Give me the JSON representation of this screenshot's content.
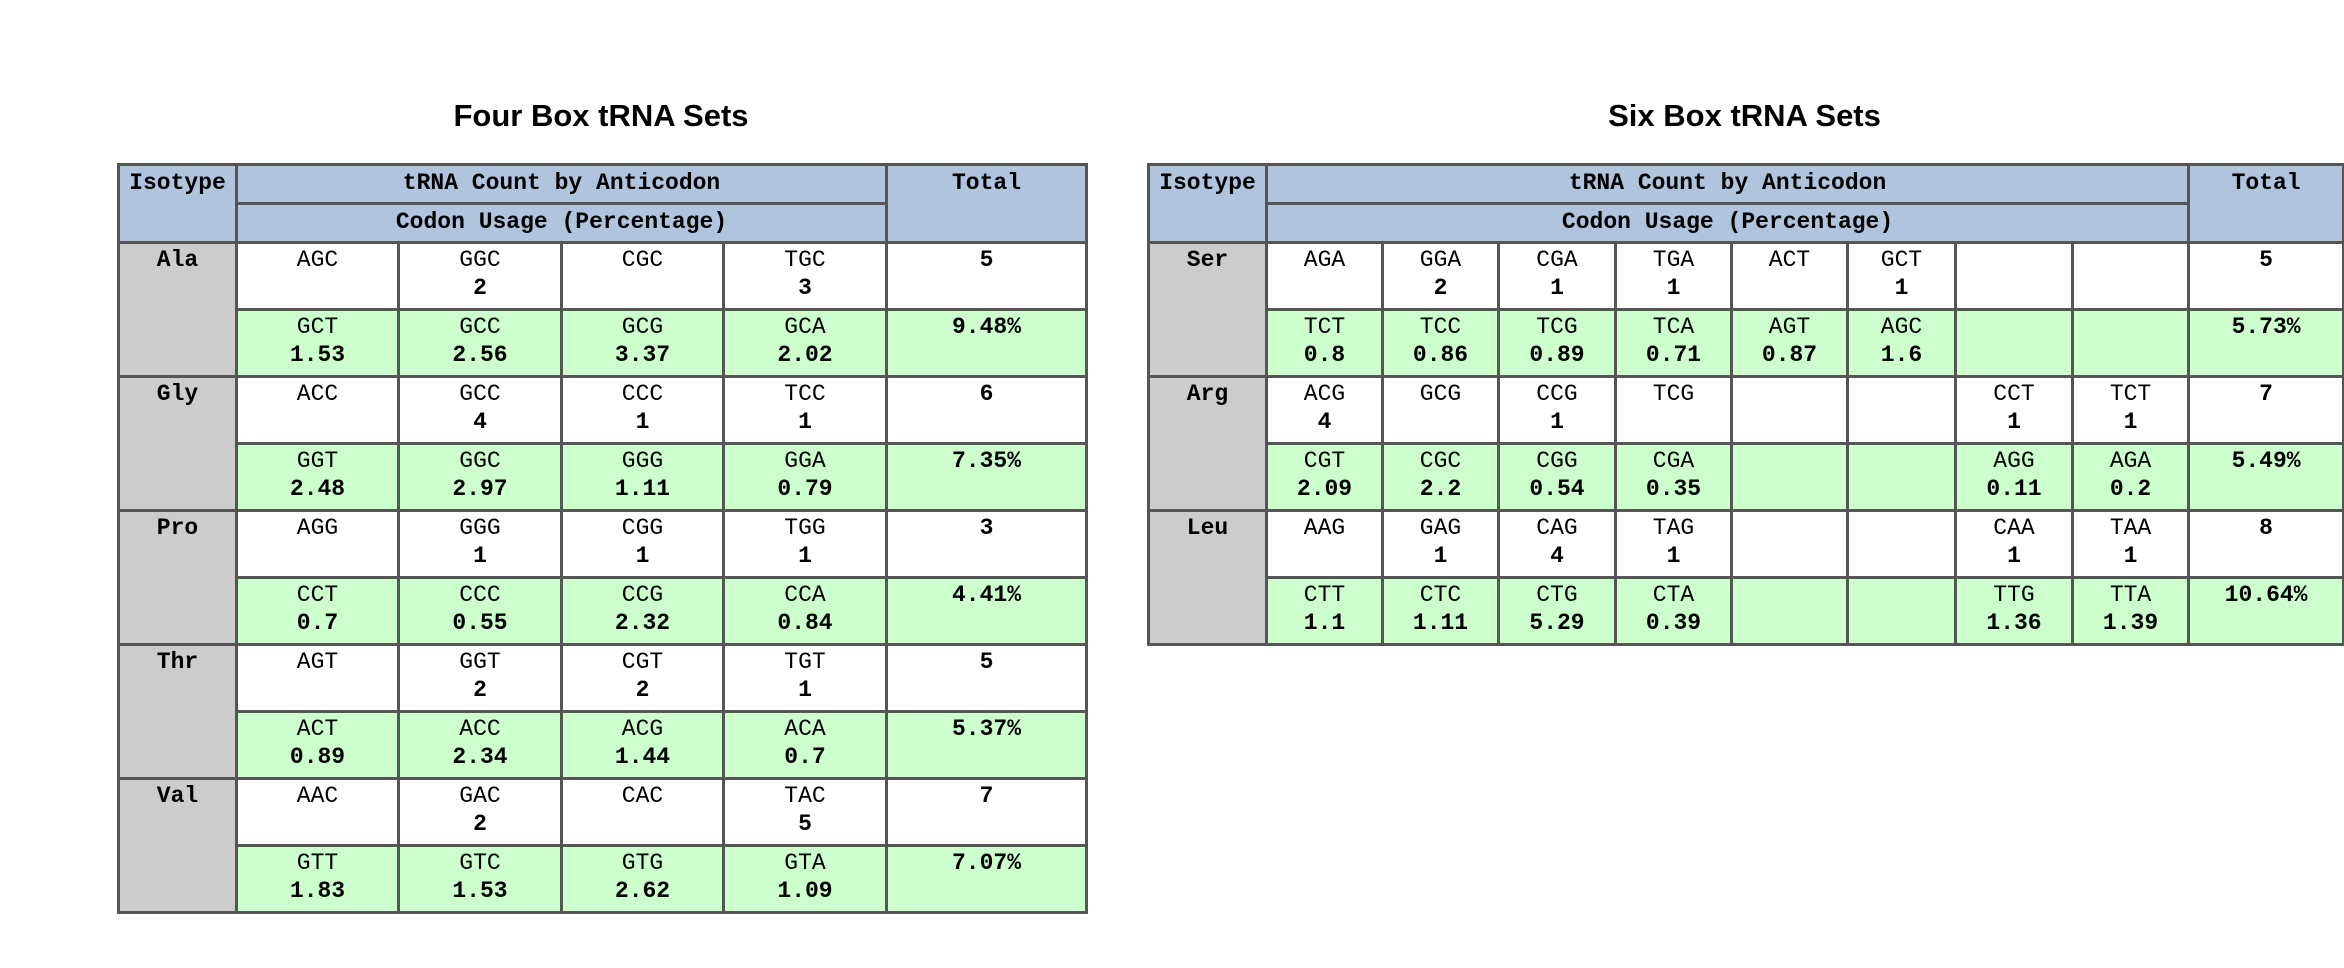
{
  "four_box": {
    "title": "Four Box tRNA Sets",
    "header": {
      "isotype": "Isotype",
      "count": "tRNA Count by Anticodon",
      "usage": "Codon Usage (Percentage)",
      "total": "Total"
    },
    "rows": [
      {
        "isotype": "Ala",
        "anticodons": [
          [
            "AGC",
            ""
          ],
          [
            "GGC",
            "2"
          ],
          [
            "CGC",
            ""
          ],
          [
            "TGC",
            "3"
          ]
        ],
        "total": "5",
        "codons": [
          [
            "GCT",
            "1.53"
          ],
          [
            "GCC",
            "2.56"
          ],
          [
            "GCG",
            "3.37"
          ],
          [
            "GCA",
            "2.02"
          ]
        ],
        "usage_total": "9.48%"
      },
      {
        "isotype": "Gly",
        "anticodons": [
          [
            "ACC",
            ""
          ],
          [
            "GCC",
            "4"
          ],
          [
            "CCC",
            "1"
          ],
          [
            "TCC",
            "1"
          ]
        ],
        "total": "6",
        "codons": [
          [
            "GGT",
            "2.48"
          ],
          [
            "GGC",
            "2.97"
          ],
          [
            "GGG",
            "1.11"
          ],
          [
            "GGA",
            "0.79"
          ]
        ],
        "usage_total": "7.35%"
      },
      {
        "isotype": "Pro",
        "anticodons": [
          [
            "AGG",
            ""
          ],
          [
            "GGG",
            "1"
          ],
          [
            "CGG",
            "1"
          ],
          [
            "TGG",
            "1"
          ]
        ],
        "total": "3",
        "codons": [
          [
            "CCT",
            "0.7"
          ],
          [
            "CCC",
            "0.55"
          ],
          [
            "CCG",
            "2.32"
          ],
          [
            "CCA",
            "0.84"
          ]
        ],
        "usage_total": "4.41%"
      },
      {
        "isotype": "Thr",
        "anticodons": [
          [
            "AGT",
            ""
          ],
          [
            "GGT",
            "2"
          ],
          [
            "CGT",
            "2"
          ],
          [
            "TGT",
            "1"
          ]
        ],
        "total": "5",
        "codons": [
          [
            "ACT",
            "0.89"
          ],
          [
            "ACC",
            "2.34"
          ],
          [
            "ACG",
            "1.44"
          ],
          [
            "ACA",
            "0.7"
          ]
        ],
        "usage_total": "5.37%"
      },
      {
        "isotype": "Val",
        "anticodons": [
          [
            "AAC",
            ""
          ],
          [
            "GAC",
            "2"
          ],
          [
            "CAC",
            ""
          ],
          [
            "TAC",
            "5"
          ]
        ],
        "total": "7",
        "codons": [
          [
            "GTT",
            "1.83"
          ],
          [
            "GTC",
            "1.53"
          ],
          [
            "GTG",
            "2.62"
          ],
          [
            "GTA",
            "1.09"
          ]
        ],
        "usage_total": "7.07%"
      }
    ]
  },
  "six_box": {
    "title": "Six Box tRNA Sets",
    "header": {
      "isotype": "Isotype",
      "count": "tRNA Count by Anticodon",
      "usage": "Codon Usage (Percentage)",
      "total": "Total"
    },
    "rows": [
      {
        "isotype": "Ser",
        "anticodons": [
          [
            "AGA",
            ""
          ],
          [
            "GGA",
            "2"
          ],
          [
            "CGA",
            "1"
          ],
          [
            "TGA",
            "1"
          ],
          [
            "ACT",
            ""
          ],
          [
            "GCT",
            "1"
          ],
          [
            "",
            ""
          ],
          [
            "",
            ""
          ]
        ],
        "total": "5",
        "codons": [
          [
            "TCT",
            "0.8"
          ],
          [
            "TCC",
            "0.86"
          ],
          [
            "TCG",
            "0.89"
          ],
          [
            "TCA",
            "0.71"
          ],
          [
            "AGT",
            "0.87"
          ],
          [
            "AGC",
            "1.6"
          ],
          [
            "",
            ""
          ],
          [
            "",
            ""
          ]
        ],
        "usage_total": "5.73%"
      },
      {
        "isotype": "Arg",
        "anticodons": [
          [
            "ACG",
            "4"
          ],
          [
            "GCG",
            ""
          ],
          [
            "CCG",
            "1"
          ],
          [
            "TCG",
            ""
          ],
          [
            "",
            ""
          ],
          [
            "",
            ""
          ],
          [
            "CCT",
            "1"
          ],
          [
            "TCT",
            "1"
          ]
        ],
        "total": "7",
        "codons": [
          [
            "CGT",
            "2.09"
          ],
          [
            "CGC",
            "2.2"
          ],
          [
            "CGG",
            "0.54"
          ],
          [
            "CGA",
            "0.35"
          ],
          [
            "",
            ""
          ],
          [
            "",
            ""
          ],
          [
            "AGG",
            "0.11"
          ],
          [
            "AGA",
            "0.2"
          ]
        ],
        "usage_total": "5.49%"
      },
      {
        "isotype": "Leu",
        "anticodons": [
          [
            "AAG",
            ""
          ],
          [
            "GAG",
            "1"
          ],
          [
            "CAG",
            "4"
          ],
          [
            "TAG",
            "1"
          ],
          [
            "",
            ""
          ],
          [
            "",
            ""
          ],
          [
            "CAA",
            "1"
          ],
          [
            "TAA",
            "1"
          ]
        ],
        "total": "8",
        "codons": [
          [
            "CTT",
            "1.1"
          ],
          [
            "CTC",
            "1.11"
          ],
          [
            "CTG",
            "5.29"
          ],
          [
            "CTA",
            "0.39"
          ],
          [
            "",
            ""
          ],
          [
            "",
            ""
          ],
          [
            "TTG",
            "1.36"
          ],
          [
            "TTA",
            "1.39"
          ]
        ],
        "usage_total": "10.64%"
      }
    ]
  }
}
